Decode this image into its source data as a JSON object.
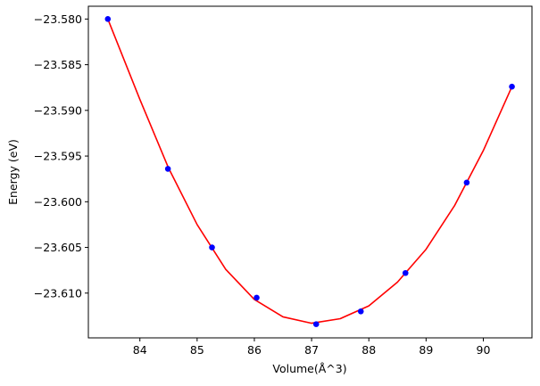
{
  "chart_data": {
    "type": "scatter",
    "title": "",
    "xlabel": "Volume(Å^3)",
    "ylabel": "Energy (eV)",
    "xlim": [
      83.1,
      90.85
    ],
    "ylim": [
      -23.6149,
      -23.5786
    ],
    "x_ticks": [
      84,
      85,
      86,
      87,
      88,
      89,
      90
    ],
    "x_tick_labels": [
      "84",
      "85",
      "86",
      "87",
      "88",
      "89",
      "90"
    ],
    "y_ticks": [
      -23.58,
      -23.585,
      -23.59,
      -23.595,
      -23.6,
      -23.605,
      -23.61
    ],
    "y_tick_labels": [
      "−23.580",
      "−23.585",
      "−23.590",
      "−23.595",
      "−23.600",
      "−23.605",
      "−23.610"
    ],
    "grid": false,
    "series": [
      {
        "kind": "points",
        "color": "#0000ff",
        "x": [
          83.44,
          84.49,
          85.26,
          86.04,
          87.08,
          87.86,
          88.64,
          89.71,
          90.5
        ],
        "y": [
          -23.58,
          -23.5964,
          -23.605,
          -23.6105,
          -23.6134,
          -23.612,
          -23.6078,
          -23.5979,
          -23.5874
        ]
      },
      {
        "kind": "fit-curve",
        "color": "#ff0000",
        "x": [
          83.44,
          84.0,
          84.5,
          85.0,
          85.5,
          86.0,
          86.5,
          87.0,
          87.5,
          88.0,
          88.5,
          89.0,
          89.5,
          90.0,
          90.5
        ],
        "y": [
          -23.58,
          -23.5888,
          -23.5963,
          -23.6025,
          -23.6074,
          -23.6107,
          -23.6126,
          -23.6133,
          -23.6128,
          -23.6114,
          -23.6088,
          -23.6052,
          -23.6004,
          -23.5944,
          -23.5874
        ]
      }
    ]
  }
}
